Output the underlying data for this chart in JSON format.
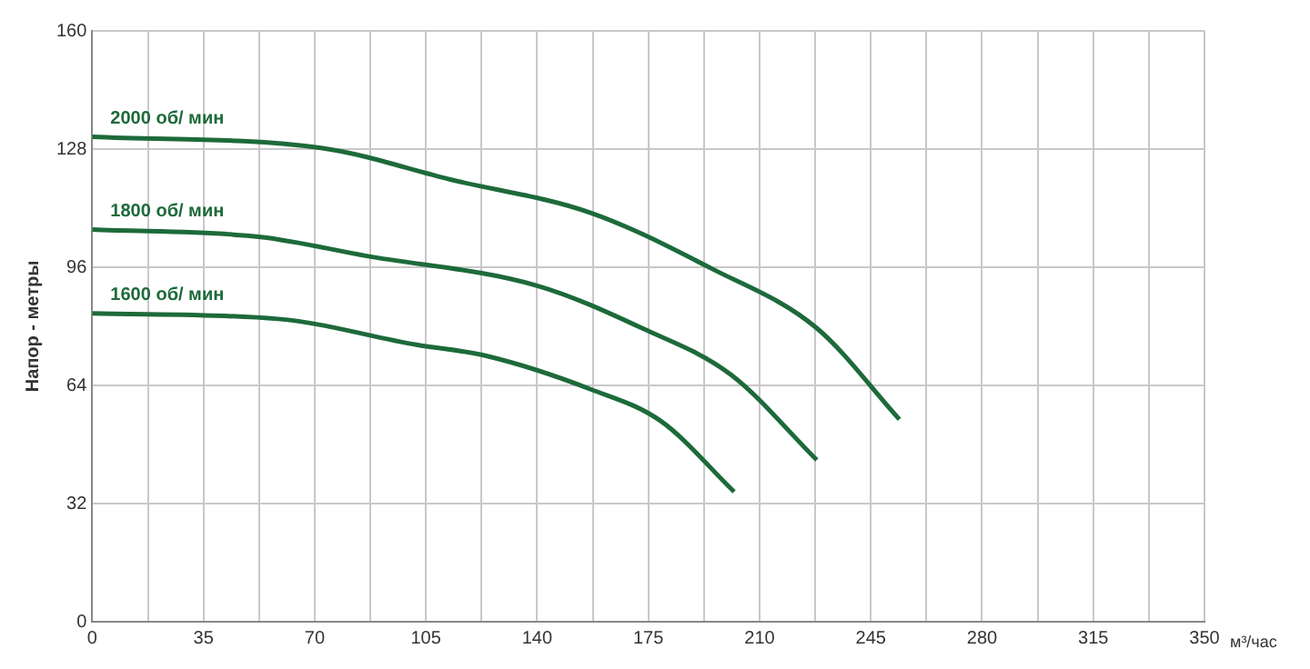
{
  "chart_data": {
    "type": "line",
    "xlabel": "м³/час",
    "ylabel": "Напор - метры",
    "xlim": [
      0,
      350
    ],
    "ylim": [
      0,
      160
    ],
    "xticks": [
      0,
      {
        "value": 17.5,
        "label": null
      },
      35,
      {
        "value": 52.5,
        "label": null
      },
      70,
      {
        "value": 87.5,
        "label": null
      },
      105,
      {
        "value": 122.5,
        "label": null
      },
      140,
      {
        "value": 157.5,
        "label": null
      },
      175,
      {
        "value": 192.5,
        "label": null
      },
      210,
      {
        "value": 227.5,
        "label": null
      },
      245,
      {
        "value": 262.5,
        "label": null
      },
      280,
      {
        "value": 297.5,
        "label": null
      },
      315,
      {
        "value": 332.5,
        "label": null
      },
      350
    ],
    "yticks": [
      0,
      32,
      64,
      96,
      128,
      160
    ],
    "grid": true,
    "legend": false,
    "marker": "none",
    "line_style": "solid",
    "series": [
      {
        "name": "2000 об/ мин",
        "color": "#1d6a3a",
        "x": [
          0,
          72,
          113,
          157,
          195,
          228,
          254
        ],
        "values": [
          131.3,
          128.3,
          119.7,
          110.7,
          95.6,
          79.5,
          54.8
        ]
      },
      {
        "name": "1800 об/ мин",
        "color": "#1d6a3a",
        "x": [
          0,
          53,
          86,
          140,
          173,
          201,
          228
        ],
        "values": [
          106.2,
          104.2,
          99.1,
          91,
          79.5,
          66.9,
          43.8
        ]
      },
      {
        "name": "1600 об/ мин",
        "color": "#1d6a3a",
        "x": [
          0,
          58.5,
          102,
          124,
          157,
          179,
          202
        ],
        "values": [
          83.5,
          82,
          75,
          72,
          62.9,
          54.3,
          35.2
        ]
      }
    ]
  }
}
